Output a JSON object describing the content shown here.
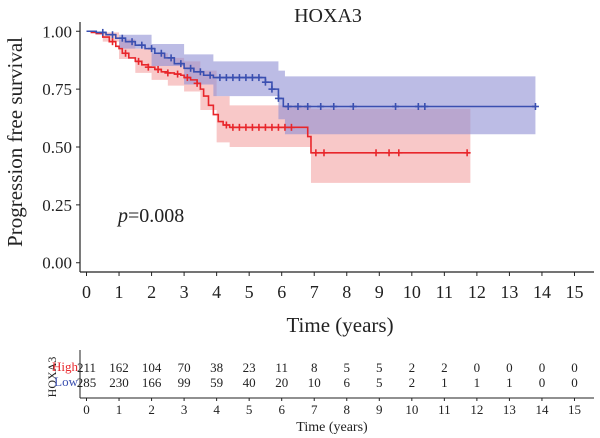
{
  "chart_data": {
    "type": "line",
    "title": "HOXA3",
    "xlabel": "Time (years)",
    "ylabel": "Progression free survival",
    "xlim": [
      -0.2,
      15.6
    ],
    "ylim": [
      -0.04,
      1.04
    ],
    "xticks": [
      0,
      1,
      2,
      3,
      4,
      5,
      6,
      7,
      8,
      9,
      10,
      11,
      12,
      13,
      14,
      15
    ],
    "yticks": [
      "0.00",
      "0.25",
      "0.50",
      "0.75",
      "1.00"
    ],
    "annotation": {
      "italic": "p",
      "rest": "=0.008"
    },
    "series": [
      {
        "name": "High",
        "color": "#e8262b",
        "ci_color": "#f4a3a3",
        "points": [
          [
            0,
            1.0
          ],
          [
            0.15,
            0.995
          ],
          [
            0.3,
            0.99
          ],
          [
            0.5,
            0.975
          ],
          [
            0.7,
            0.955
          ],
          [
            0.9,
            0.935
          ],
          [
            1.0,
            0.925
          ],
          [
            1.1,
            0.905
          ],
          [
            1.3,
            0.885
          ],
          [
            1.5,
            0.87
          ],
          [
            1.7,
            0.855
          ],
          [
            1.9,
            0.845
          ],
          [
            2.1,
            0.835
          ],
          [
            2.3,
            0.825
          ],
          [
            2.5,
            0.82
          ],
          [
            2.7,
            0.815
          ],
          [
            2.9,
            0.81
          ],
          [
            3.0,
            0.8
          ],
          [
            3.2,
            0.79
          ],
          [
            3.4,
            0.775
          ],
          [
            3.5,
            0.75
          ],
          [
            3.6,
            0.72
          ],
          [
            3.75,
            0.68
          ],
          [
            3.9,
            0.64
          ],
          [
            4.05,
            0.61
          ],
          [
            4.2,
            0.595
          ],
          [
            4.4,
            0.585
          ],
          [
            6.8,
            0.585
          ],
          [
            6.8,
            0.545
          ],
          [
            6.9,
            0.475
          ],
          [
            11.8,
            0.475
          ]
        ],
        "ci_upper": [
          [
            0,
            1.0
          ],
          [
            0.5,
            0.995
          ],
          [
            1.0,
            0.965
          ],
          [
            1.5,
            0.925
          ],
          [
            2.0,
            0.905
          ],
          [
            2.5,
            0.885
          ],
          [
            3.0,
            0.87
          ],
          [
            3.5,
            0.83
          ],
          [
            4.0,
            0.72
          ],
          [
            4.4,
            0.68
          ],
          [
            6.8,
            0.68
          ],
          [
            6.9,
            0.665
          ],
          [
            11.8,
            0.665
          ]
        ],
        "ci_lower": [
          [
            0,
            1.0
          ],
          [
            0.5,
            0.955
          ],
          [
            1.0,
            0.88
          ],
          [
            1.5,
            0.82
          ],
          [
            2.0,
            0.79
          ],
          [
            2.5,
            0.765
          ],
          [
            3.0,
            0.74
          ],
          [
            3.5,
            0.66
          ],
          [
            4.0,
            0.52
          ],
          [
            4.4,
            0.5
          ],
          [
            6.8,
            0.5
          ],
          [
            6.9,
            0.345
          ],
          [
            11.8,
            0.345
          ]
        ],
        "censor": [
          0.8,
          1.2,
          1.6,
          1.9,
          2.2,
          2.5,
          2.8,
          3.1,
          3.4,
          4.3,
          4.5,
          4.7,
          4.9,
          5.1,
          5.3,
          5.5,
          5.7,
          5.9,
          6.1,
          6.3,
          7.05,
          7.3,
          8.9,
          9.3,
          9.6,
          11.7
        ],
        "at_risk": [
          211,
          162,
          104,
          70,
          38,
          23,
          11,
          8,
          5,
          5,
          2,
          2,
          0,
          0,
          0,
          0
        ]
      },
      {
        "name": "Low",
        "color": "#3a4fb0",
        "ci_color": "#8f8fd4",
        "points": [
          [
            0,
            1.0
          ],
          [
            0.3,
            0.995
          ],
          [
            0.6,
            0.985
          ],
          [
            0.9,
            0.97
          ],
          [
            1.2,
            0.955
          ],
          [
            1.5,
            0.94
          ],
          [
            1.8,
            0.925
          ],
          [
            2.1,
            0.905
          ],
          [
            2.4,
            0.885
          ],
          [
            2.7,
            0.86
          ],
          [
            3.0,
            0.84
          ],
          [
            3.3,
            0.825
          ],
          [
            3.6,
            0.81
          ],
          [
            3.9,
            0.8
          ],
          [
            5.3,
            0.8
          ],
          [
            5.5,
            0.78
          ],
          [
            5.7,
            0.75
          ],
          [
            5.9,
            0.71
          ],
          [
            6.05,
            0.675
          ],
          [
            13.8,
            0.675
          ]
        ],
        "ci_upper": [
          [
            0,
            1.0
          ],
          [
            1.0,
            0.985
          ],
          [
            2.0,
            0.945
          ],
          [
            3.0,
            0.9
          ],
          [
            3.9,
            0.87
          ],
          [
            5.3,
            0.87
          ],
          [
            5.9,
            0.83
          ],
          [
            6.1,
            0.805
          ],
          [
            13.8,
            0.805
          ]
        ],
        "ci_lower": [
          [
            0,
            1.0
          ],
          [
            1.0,
            0.925
          ],
          [
            2.0,
            0.85
          ],
          [
            3.0,
            0.77
          ],
          [
            3.9,
            0.72
          ],
          [
            5.3,
            0.72
          ],
          [
            5.9,
            0.62
          ],
          [
            6.1,
            0.555
          ],
          [
            13.8,
            0.555
          ]
        ],
        "censor": [
          0.5,
          0.8,
          1.1,
          1.4,
          1.7,
          2.0,
          2.3,
          2.6,
          2.9,
          3.2,
          3.5,
          3.8,
          4.1,
          4.3,
          4.5,
          4.7,
          4.9,
          5.1,
          5.3,
          5.5,
          5.7,
          5.9,
          6.2,
          6.5,
          6.8,
          7.2,
          7.6,
          8.2,
          9.5,
          10.2,
          10.4,
          13.8
        ],
        "at_risk": [
          285,
          230,
          166,
          99,
          59,
          40,
          20,
          10,
          6,
          5,
          2,
          1,
          1,
          1,
          0,
          0
        ]
      }
    ],
    "risk_table": {
      "ylabel": "HOXA3",
      "xlabel": "Time (years)",
      "xticks": [
        0,
        1,
        2,
        3,
        4,
        5,
        6,
        7,
        8,
        9,
        10,
        11,
        12,
        13,
        14,
        15
      ]
    }
  }
}
